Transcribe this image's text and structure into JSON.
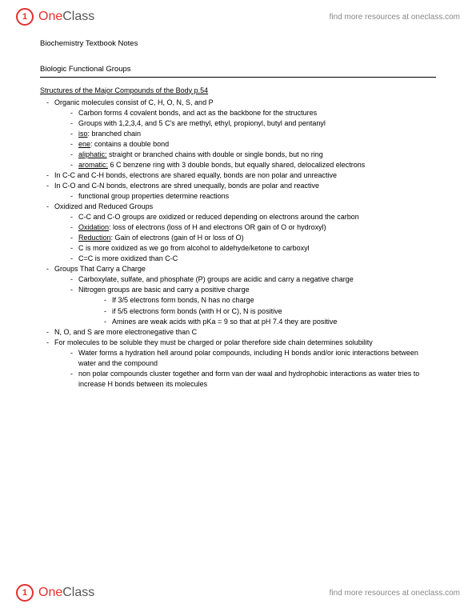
{
  "header": {
    "logo_one": "One",
    "logo_class": "Class",
    "find_text": "find more resources at oneclass.com"
  },
  "doc": {
    "title": "Biochemistry Textbook Notes",
    "section": "Biologic Functional Groups",
    "subheading": "Structures of the Major Compounds of the Body p.54",
    "b1": "Organic molecules consist of C, H, O, N, S, and P",
    "b1a": "Carbon forms 4 covalent bonds, and act as the backbone for the structures",
    "b1b": "Groups with 1,2,3,4, and 5 C's are methyl, ethyl, propionyl, butyl and pentanyl",
    "b1c_term": "iso",
    "b1c_rest": ": branched chain",
    "b1d_term": "ene",
    "b1d_rest": ": contains a double bond",
    "b1e_term": "aliphatic:",
    "b1e_rest": " straight or branched chains with double or single bonds, but no ring",
    "b1f_term": "aromatic:",
    "b1f_rest": " 6 C benzene ring with 3 double bonds, but equally shared, delocalized electrons",
    "b2": "In C-C and C-H bonds, electrons are shared equally, bonds are non polar and unreactive",
    "b3": "In C-O and C-N bonds, electrons are shred unequally, bonds are polar and reactive",
    "b3a": "functional group properties determine reactions",
    "b4": "Oxidized and Reduced Groups",
    "b4a": "C-C and C-O groups are oxidized or reduced depending on electrons around the carbon",
    "b4b_term": "Oxidation",
    "b4b_rest": ": loss of electrons (loss of H and electrons OR gain of O or hydroxyl)",
    "b4c_term": "Reduction",
    "b4c_rest": ": Gain of electrons (gain of H or loss of O)",
    "b4d": "C is more oxidized as we go from alcohol to aldehyde/ketone to carboxyl",
    "b4e": "C=C is more oxidized than C-C",
    "b5": "Groups That Carry a Charge",
    "b5a": "Carboxylate, sulfate, and phosphate (P) groups are acidic and carry a negative charge",
    "b5b": "Nitrogen groups are basic and carry a positive charge",
    "b5b1": "If 3/5 electrons form bonds, N has no charge",
    "b5b2": "if 5/5 electrons form bonds (with H or C), N is positive",
    "b5b3": "Amines are weak acids with pKa = 9 so that at pH 7.4 they are positive",
    "b6": "N, O, and S are more electronegative than C",
    "b7": "For molecules to be soluble they must be charged or polar therefore side chain determines solubility",
    "b7a": "Water forms a hydration hell around polar compounds, including H bonds and/or ionic interactions between water and the compound",
    "b7b": "non polar compounds cluster together and form van der waal and hydrophobic interactions as water tries to increase H bonds between its molecules"
  }
}
